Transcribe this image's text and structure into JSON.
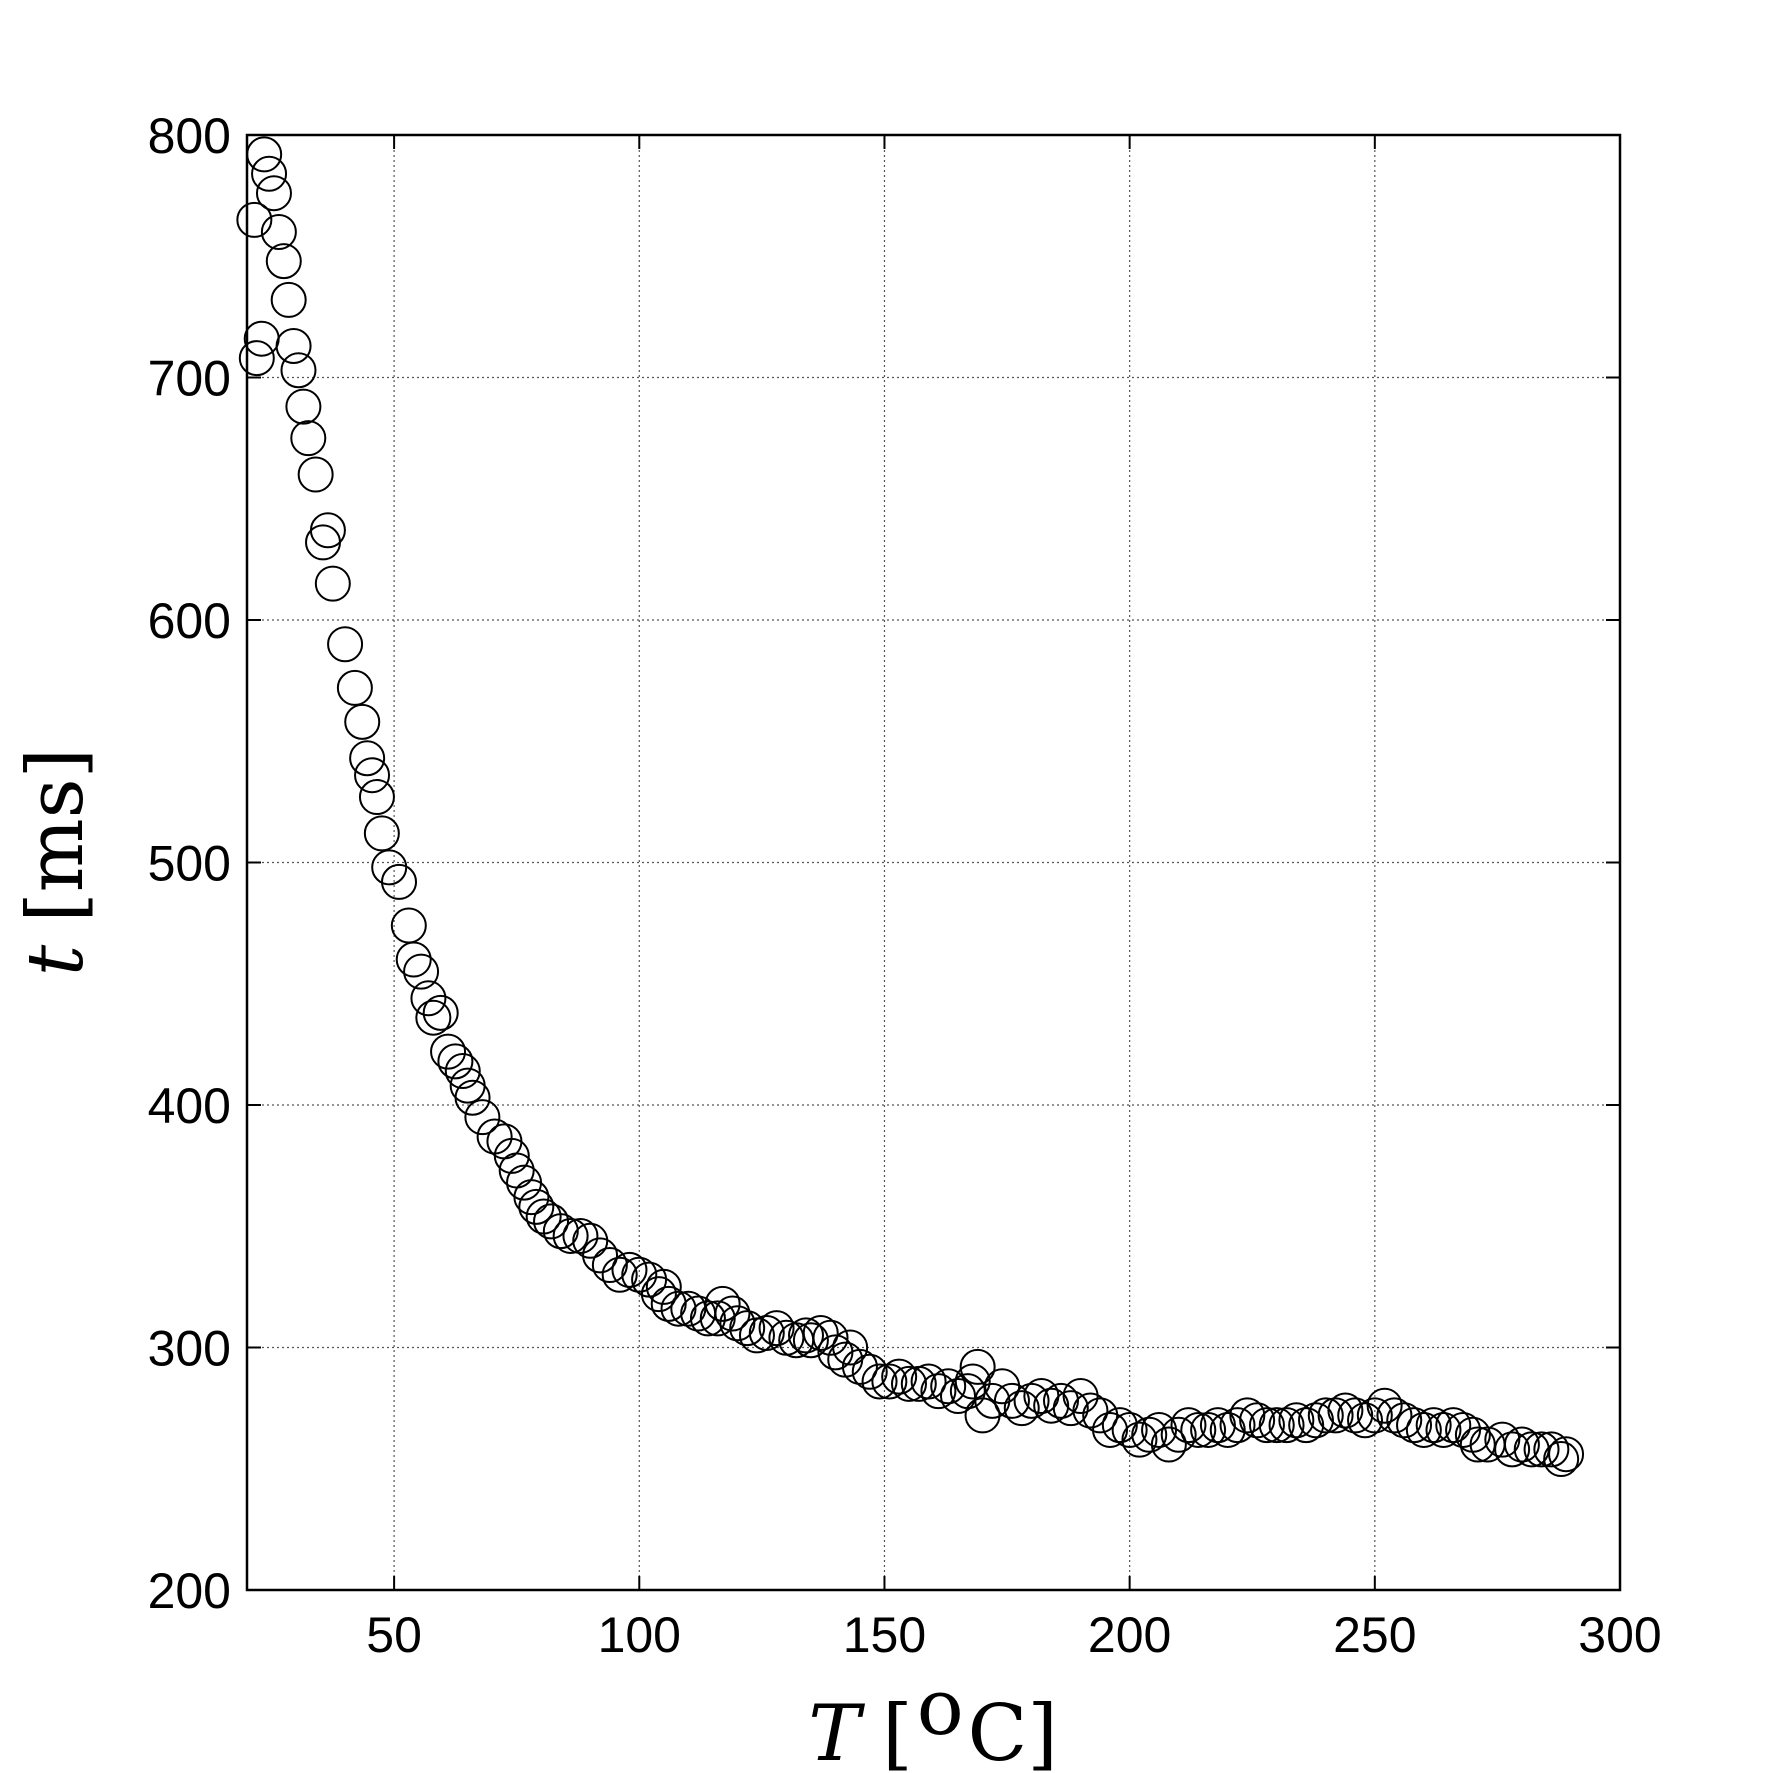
{
  "chart_data": {
    "type": "scatter",
    "title": "",
    "xlabel": "T",
    "xlabel_unit_open": "[",
    "xlabel_unit_sup": "o",
    "xlabel_unit": "C]",
    "ylabel": "t",
    "ylabel_unit": "[ms]",
    "xlim": [
      20,
      300
    ],
    "ylim": [
      200,
      800
    ],
    "xticks": [
      50,
      100,
      150,
      200,
      250,
      300
    ],
    "yticks": [
      200,
      300,
      400,
      500,
      600,
      700,
      800
    ],
    "grid": true,
    "legend": "none",
    "marker": "open-circle",
    "color": "#000000",
    "points": [
      [
        21.5,
        765
      ],
      [
        22,
        708
      ],
      [
        23,
        716
      ],
      [
        23.5,
        792
      ],
      [
        24.5,
        784
      ],
      [
        25.5,
        776
      ],
      [
        26.5,
        760
      ],
      [
        27.5,
        748
      ],
      [
        28.5,
        732
      ],
      [
        29.5,
        713
      ],
      [
        30.5,
        703
      ],
      [
        31.5,
        688
      ],
      [
        32.5,
        675
      ],
      [
        34,
        660
      ],
      [
        35.5,
        632
      ],
      [
        36.5,
        637
      ],
      [
        37.5,
        615
      ],
      [
        40,
        590
      ],
      [
        42,
        572
      ],
      [
        43.5,
        558
      ],
      [
        44.5,
        543
      ],
      [
        45.5,
        536
      ],
      [
        46.5,
        527
      ],
      [
        47.5,
        512
      ],
      [
        49,
        498
      ],
      [
        51,
        492
      ],
      [
        53,
        474
      ],
      [
        54,
        460
      ],
      [
        55.5,
        455
      ],
      [
        57,
        444
      ],
      [
        58,
        436
      ],
      [
        59.5,
        438
      ],
      [
        61,
        422
      ],
      [
        62.5,
        418
      ],
      [
        64,
        414
      ],
      [
        65,
        408
      ],
      [
        66,
        403
      ],
      [
        68,
        395
      ],
      [
        70.5,
        387
      ],
      [
        72.5,
        385
      ],
      [
        74,
        379
      ],
      [
        75,
        373
      ],
      [
        76.5,
        368
      ],
      [
        78,
        362
      ],
      [
        79,
        358
      ],
      [
        80.5,
        354
      ],
      [
        82,
        352
      ],
      [
        84,
        348
      ],
      [
        86,
        346
      ],
      [
        88,
        346
      ],
      [
        90,
        344
      ],
      [
        92,
        338
      ],
      [
        94,
        334
      ],
      [
        96,
        330
      ],
      [
        98,
        332
      ],
      [
        100,
        330
      ],
      [
        102,
        328
      ],
      [
        104,
        322
      ],
      [
        105,
        325
      ],
      [
        106,
        318
      ],
      [
        108,
        316
      ],
      [
        110,
        316
      ],
      [
        112,
        314
      ],
      [
        114,
        312
      ],
      [
        116,
        312
      ],
      [
        117,
        318
      ],
      [
        119,
        314
      ],
      [
        120,
        310
      ],
      [
        122,
        308
      ],
      [
        124,
        305
      ],
      [
        126,
        306
      ],
      [
        128,
        308
      ],
      [
        130,
        304
      ],
      [
        132,
        303
      ],
      [
        134,
        305
      ],
      [
        135,
        303
      ],
      [
        137,
        306
      ],
      [
        139,
        304
      ],
      [
        140,
        298
      ],
      [
        142,
        295
      ],
      [
        143,
        300
      ],
      [
        145,
        292
      ],
      [
        147,
        290
      ],
      [
        149,
        286
      ],
      [
        151,
        286
      ],
      [
        153,
        288
      ],
      [
        155,
        285
      ],
      [
        157,
        285
      ],
      [
        159,
        286
      ],
      [
        161,
        282
      ],
      [
        163,
        284
      ],
      [
        165,
        280
      ],
      [
        167,
        282
      ],
      [
        168,
        286
      ],
      [
        169,
        292
      ],
      [
        170,
        272
      ],
      [
        172,
        278
      ],
      [
        174,
        284
      ],
      [
        176,
        278
      ],
      [
        178,
        275
      ],
      [
        180,
        278
      ],
      [
        182,
        280
      ],
      [
        184,
        276
      ],
      [
        186,
        278
      ],
      [
        188,
        275
      ],
      [
        190,
        280
      ],
      [
        192,
        274
      ],
      [
        194,
        272
      ],
      [
        196,
        266
      ],
      [
        198,
        268
      ],
      [
        200,
        266
      ],
      [
        202,
        262
      ],
      [
        204,
        264
      ],
      [
        206,
        266
      ],
      [
        208,
        260
      ],
      [
        210,
        264
      ],
      [
        212,
        268
      ],
      [
        214,
        266
      ],
      [
        216,
        266
      ],
      [
        218,
        268
      ],
      [
        220,
        266
      ],
      [
        222,
        268
      ],
      [
        224,
        272
      ],
      [
        226,
        270
      ],
      [
        228,
        268
      ],
      [
        230,
        268
      ],
      [
        232,
        268
      ],
      [
        234,
        270
      ],
      [
        236,
        268
      ],
      [
        238,
        270
      ],
      [
        240,
        272
      ],
      [
        242,
        272
      ],
      [
        244,
        274
      ],
      [
        246,
        272
      ],
      [
        248,
        270
      ],
      [
        250,
        272
      ],
      [
        252,
        276
      ],
      [
        254,
        272
      ],
      [
        256,
        270
      ],
      [
        258,
        268
      ],
      [
        260,
        266
      ],
      [
        262,
        268
      ],
      [
        264,
        266
      ],
      [
        266,
        268
      ],
      [
        268,
        266
      ],
      [
        270,
        264
      ],
      [
        271,
        260
      ],
      [
        273,
        260
      ],
      [
        276,
        262
      ],
      [
        278,
        258
      ],
      [
        280,
        260
      ],
      [
        282,
        258
      ],
      [
        284,
        258
      ],
      [
        286,
        258
      ],
      [
        288,
        254
      ],
      [
        289,
        256
      ]
    ]
  }
}
